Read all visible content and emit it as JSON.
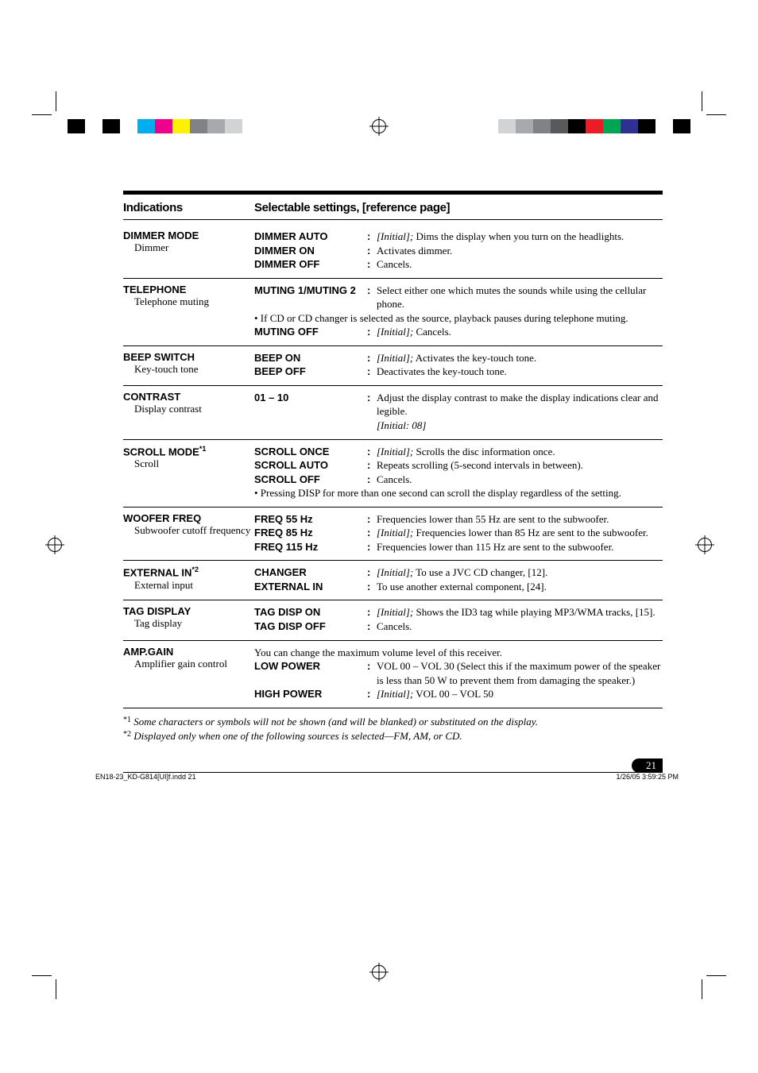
{
  "header": {
    "indications": "Indications",
    "settings": "Selectable settings, [reference page]"
  },
  "rows": [
    {
      "ind_title": "DIMMER MODE",
      "ind_sub": "Dimmer",
      "lines": [
        {
          "key": "DIMMER AUTO",
          "desc_prefix_italic": "[Initial];",
          "desc": " Dims the display when you turn on the headlights."
        },
        {
          "key": "DIMMER ON",
          "desc": "Activates dimmer."
        },
        {
          "key": "DIMMER OFF",
          "desc": "Cancels."
        }
      ]
    },
    {
      "ind_title": "TELEPHONE",
      "ind_sub": "Telephone muting",
      "lines": [
        {
          "key": "MUTING 1/MUTING 2",
          "desc": "Select either one which mutes the sounds while using the cellular phone."
        }
      ],
      "note": "• If CD or CD changer is selected as the source, playback pauses during telephone muting.",
      "lines2": [
        {
          "key": "MUTING OFF",
          "desc_prefix_italic": "[Initial];",
          "desc": " Cancels."
        }
      ]
    },
    {
      "ind_title": "BEEP SWITCH",
      "ind_sub": "Key-touch tone",
      "lines": [
        {
          "key": "BEEP ON",
          "desc_prefix_italic": "[Initial];",
          "desc": " Activates the key-touch tone."
        },
        {
          "key": "BEEP OFF",
          "desc": "Deactivates the key-touch tone."
        }
      ]
    },
    {
      "ind_title": "CONTRAST",
      "ind_sub": "Display contrast",
      "lines": [
        {
          "key": "01 – 10",
          "desc": "Adjust the display contrast to make the display indications clear and legible.",
          "suffix_italic": "[Initial: 08]"
        }
      ]
    },
    {
      "ind_title": "SCROLL MODE",
      "ind_title_sup": "*1",
      "ind_sub": "Scroll",
      "lines": [
        {
          "key": "SCROLL ONCE",
          "desc_prefix_italic": "[Initial];",
          "desc": " Scrolls the disc information once."
        },
        {
          "key": "SCROLL AUTO",
          "desc": "Repeats scrolling (5-second intervals in between)."
        },
        {
          "key": "SCROLL OFF",
          "desc": "Cancels."
        }
      ],
      "note": "• Pressing DISP for more than one second can scroll the display regardless of the setting."
    },
    {
      "ind_title": "WOOFER FREQ",
      "ind_sub": "Subwoofer cutoff frequency",
      "lines": [
        {
          "key": "FREQ 55 Hz",
          "desc": "Frequencies lower than 55 Hz are sent to the subwoofer."
        },
        {
          "key": "FREQ 85 Hz",
          "desc_prefix_italic": "[Initial];",
          "desc": " Frequencies lower than 85 Hz are sent to the subwoofer."
        },
        {
          "key": "FREQ 115 Hz",
          "desc": "Frequencies lower than 115 Hz are sent to the subwoofer."
        }
      ]
    },
    {
      "ind_title": "EXTERNAL IN",
      "ind_title_sup": "*2",
      "ind_sub": "External input",
      "lines": [
        {
          "key": "CHANGER",
          "desc_prefix_italic": "[Initial];",
          "desc": " To use a JVC CD changer, [12]."
        },
        {
          "key": "EXTERNAL IN",
          "desc": "To use another external component, [24]."
        }
      ]
    },
    {
      "ind_title": "TAG DISPLAY",
      "ind_sub": "Tag display",
      "lines": [
        {
          "key": "TAG DISP ON",
          "desc_prefix_italic": "[Initial];",
          "desc": " Shows the ID3 tag while playing MP3/WMA tracks, [15]."
        },
        {
          "key": "TAG DISP OFF",
          "desc": "Cancels."
        }
      ]
    },
    {
      "ind_title": "AMP.GAIN",
      "ind_sub": "Amplifier gain control",
      "pre_note": "You can change the maximum volume level of this receiver.",
      "lines": [
        {
          "key": "LOW POWER",
          "desc": "VOL 00 – VOL 30 (Select this if the maximum power of the speaker is less than 50 W to prevent them from damaging the speaker.)"
        },
        {
          "key": "HIGH POWER",
          "desc_prefix_italic": "[Initial];",
          "desc": " VOL 00 – VOL 50"
        }
      ]
    }
  ],
  "footnotes": {
    "f1_marker": "*1",
    "f1": "Some characters or symbols will not be shown (and will be blanked) or substituted on the display.",
    "f2_marker": "*2",
    "f2": "Displayed only when one of the following sources is selected—FM, AM, or CD."
  },
  "page_number": "21",
  "footer": {
    "left": "EN18-23_KD-G814[UI]f.indd   21",
    "right": "1/26/05   3:59:25 PM"
  },
  "colorbar_left": [
    "#000000",
    "#ffffff",
    "#000000",
    "#ffffff",
    "#00aeef",
    "#ec008c",
    "#fff200",
    "#808285",
    "#a7a9ac",
    "#d1d3d4",
    "#ffffff"
  ],
  "colorbar_right": [
    "#ffffff",
    "#d1d3d4",
    "#a7a9ac",
    "#808285",
    "#58595b",
    "#000000",
    "#ed1c24",
    "#00a651",
    "#2e3192",
    "#000000",
    "#ffffff",
    "#000000"
  ]
}
